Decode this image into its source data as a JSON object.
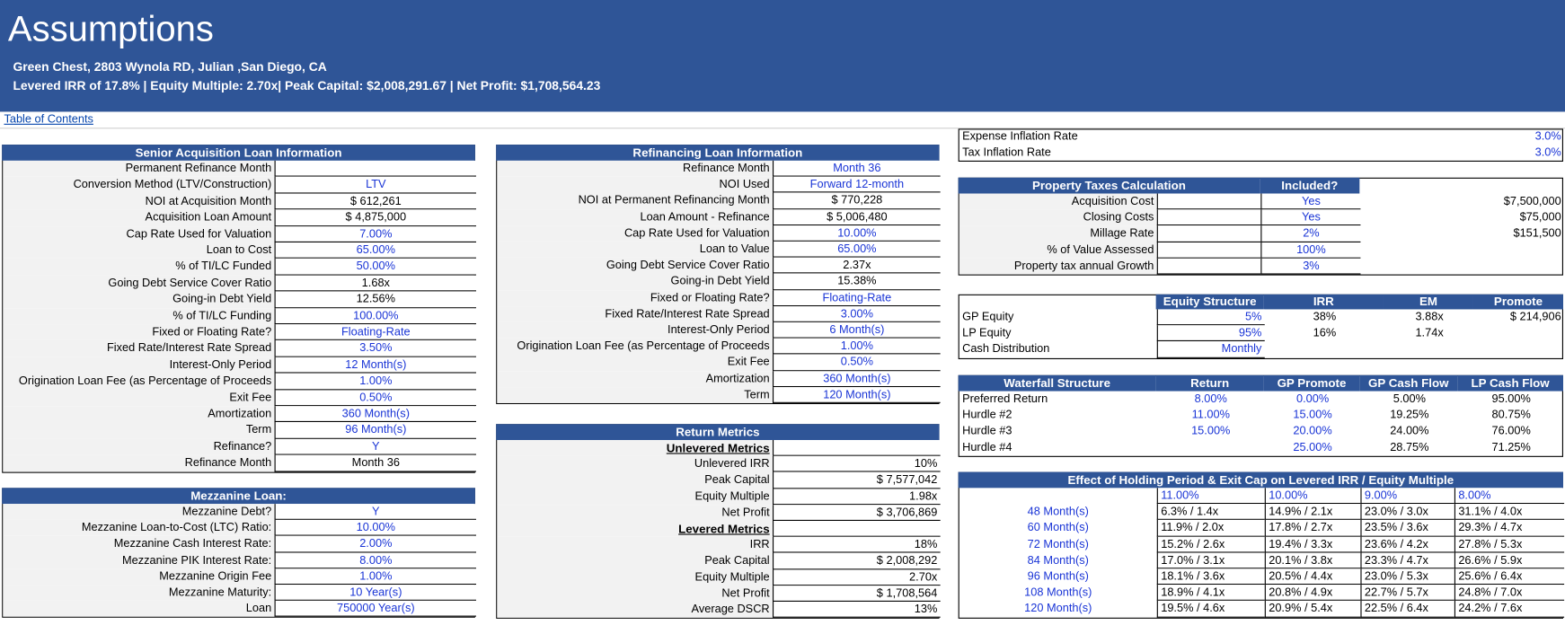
{
  "header": {
    "title": "Assumptions",
    "subtitle": "Green Chest, 2803 Wynola RD, Julian ,San Diego, CA",
    "summary": "Levered IRR of 17.8% | Equity Multiple: 2.70x| Peak Capital: $2,008,291.67 | Net Profit: $1,708,564.23"
  },
  "toc_link": "Table of Contents",
  "senior_loan": {
    "title": "Senior Acquisition Loan Information",
    "rows": [
      {
        "label": "Permanent Refinance Month",
        "value": null
      },
      {
        "label": "Conversion Method (LTV/Construction)",
        "value": "LTV",
        "input": true
      },
      {
        "label": "NOI at Acquisition Month",
        "value": "$ 612,261"
      },
      {
        "label": "Acquisition Loan Amount",
        "value": "$ 4,875,000"
      },
      {
        "label": "Cap Rate Used for Valuation",
        "value": "7.00%",
        "input": true
      },
      {
        "label": "Loan to Cost",
        "value": "65.00%",
        "input": true
      },
      {
        "label": "% of TI/LC Funded",
        "value": "50.00%",
        "input": true
      },
      {
        "label": "Going Debt Service Cover Ratio",
        "value": "1.68x"
      },
      {
        "label": "Going-in Debt Yield",
        "value": "12.56%"
      },
      {
        "label": "% of TI/LC Funding",
        "value": "100.00%",
        "input": true
      },
      {
        "label": "Fixed or Floating Rate?",
        "value": "Floating-Rate",
        "input": true
      },
      {
        "label": "Fixed Rate/Interest Rate Spread",
        "value": "3.50%",
        "input": true
      },
      {
        "label": "Interest-Only Period",
        "value": "12 Month(s)",
        "input": true
      },
      {
        "label": "Origination Loan Fee (as Percentage of Proceeds",
        "value": "1.00%",
        "input": true
      },
      {
        "label": "Exit Fee",
        "value": "0.50%",
        "input": true
      },
      {
        "label": "Amortization",
        "value": "360 Month(s)",
        "input": true
      },
      {
        "label": "Term",
        "value": "96 Month(s)",
        "input": true
      },
      {
        "label": "Refinance?",
        "value": "Y",
        "input": true
      },
      {
        "label": "Refinance Month",
        "value": "Month 36"
      }
    ]
  },
  "mezzanine": {
    "title": "Mezzanine Loan:",
    "rows": [
      {
        "label": "Mezzanine Debt?",
        "value": "Y",
        "input": true
      },
      {
        "label": "Mezzanine Loan-to-Cost (LTC) Ratio:",
        "value": "10.00%",
        "input": true
      },
      {
        "label": "Mezzanine Cash Interest Rate:",
        "value": "2.00%",
        "input": true
      },
      {
        "label": "Mezzanine PIK Interest Rate:",
        "value": "8.00%",
        "input": true
      },
      {
        "label": "Mezzanine Origin Fee",
        "value": "1.00%",
        "input": true
      },
      {
        "label": "Mezzanine Maturity:",
        "value": "10 Year(s)",
        "input": true
      },
      {
        "label": "Loan",
        "value": "750000 Year(s)",
        "input": true
      }
    ]
  },
  "refinancing": {
    "title": "Refinancing Loan Information",
    "rows": [
      {
        "label": "Refinance Month",
        "value": "Month 36",
        "input": true
      },
      {
        "label": "NOI Used",
        "value": "Forward 12-month",
        "input": true
      },
      {
        "label": "NOI at Permanent Refinancing Month",
        "value": "$ 770,228"
      },
      {
        "label": "Loan Amount - Refinance",
        "value": "$ 5,006,480"
      },
      {
        "label": "Cap Rate Used for Valuation",
        "value": "10.00%",
        "input": true
      },
      {
        "label": "Loan to Value",
        "value": "65.00%",
        "input": true
      },
      {
        "label": "Going Debt Service Cover Ratio",
        "value": "2.37x"
      },
      {
        "label": "Going-in Debt Yield",
        "value": "15.38%"
      },
      {
        "label": "Fixed or Floating Rate?",
        "value": "Floating-Rate",
        "input": true
      },
      {
        "label": "Fixed Rate/Interest Rate Spread",
        "value": "3.00%",
        "input": true
      },
      {
        "label": "Interest-Only Period",
        "value": "6 Month(s)",
        "input": true
      },
      {
        "label": "Origination Loan Fee (as Percentage of Proceeds",
        "value": "1.00%",
        "input": true
      },
      {
        "label": "Exit Fee",
        "value": "0.50%",
        "input": true
      },
      {
        "label": "Amortization",
        "value": "360 Month(s)",
        "input": true
      },
      {
        "label": "Term",
        "value": "120 Month(s)",
        "input": true
      }
    ]
  },
  "return_metrics": {
    "title": "Return Metrics",
    "rows": [
      {
        "heading": "Unlevered Metrics"
      },
      {
        "label": "Unlevered IRR",
        "value": "10%"
      },
      {
        "label": "Peak Capital",
        "value": "$ 7,577,042"
      },
      {
        "label": "Equity Multiple",
        "value": "1.98x"
      },
      {
        "label": "Net Profit",
        "value": "$ 3,706,869"
      },
      {
        "heading": "Levered Metrics"
      },
      {
        "label": "IRR",
        "value": "18%"
      },
      {
        "label": "Peak Capital",
        "value": "$ 2,008,292"
      },
      {
        "label": "Equity Multiple",
        "value": "2.70x"
      },
      {
        "label": "Net Profit",
        "value": "$ 1,708,564"
      },
      {
        "label": "Average DSCR",
        "value": "13%"
      }
    ]
  },
  "inflation": {
    "rows": [
      {
        "label": "Expense Inflation Rate",
        "value": "3.0%",
        "input": true
      },
      {
        "label": "Tax Inflation Rate",
        "value": "3.0%",
        "input": true
      }
    ]
  },
  "property_taxes": {
    "columns": [
      "Property Taxes Calculation",
      "Included?"
    ],
    "rows": [
      [
        "Acquisition Cost",
        null,
        "Yes",
        "$7,500,000"
      ],
      [
        "Closing Costs",
        null,
        "Yes",
        "$75,000"
      ],
      [
        "Millage Rate",
        null,
        "2%",
        "$151,500"
      ],
      [
        "% of Value Assessed",
        null,
        "100%",
        null
      ],
      [
        "Property tax annual Growth",
        null,
        "3%",
        null
      ]
    ]
  },
  "equity_structure": {
    "columns": [
      "Equity Structure",
      "IRR",
      "EM",
      "Promote"
    ],
    "rows": [
      [
        "GP Equity",
        "5%",
        "38%",
        "3.88x",
        "$ 214,906"
      ],
      [
        "LP Equity",
        "95%",
        "16%",
        "1.74x",
        null
      ],
      [
        "Cash Distribution",
        "Monthly",
        null,
        null,
        null
      ]
    ]
  },
  "waterfall": {
    "columns": [
      "Waterfall Structure",
      "Return",
      "GP Promote",
      "GP Cash Flow",
      "LP Cash Flow"
    ],
    "rows": [
      [
        "Preferred Return",
        "8.00%",
        "0.00%",
        "5.00%",
        "95.00%"
      ],
      [
        "Hurdle #2",
        "11.00%",
        "15.00%",
        "19.25%",
        "80.75%"
      ],
      [
        "Hurdle #3",
        "15.00%",
        "20.00%",
        "24.00%",
        "76.00%"
      ],
      [
        "Hurdle #4",
        null,
        "25.00%",
        "28.75%",
        "71.25%"
      ]
    ]
  },
  "holding_period": {
    "title": "Effect of Holding Period & Exit Cap on Levered IRR / Equity Multiple",
    "rows": [
      [
        null,
        "11.00%",
        "10.00%",
        "9.00%",
        "8.00%"
      ],
      [
        "48 Month(s)",
        "6.3% / 1.4x",
        "14.9% / 2.1x",
        "23.0% / 3.0x",
        "31.1% / 4.0x"
      ],
      [
        "60 Month(s)",
        "11.9% / 2.0x",
        "17.8% / 2.7x",
        "23.5% / 3.6x",
        "29.3% / 4.7x"
      ],
      [
        "72 Month(s)",
        "15.2% / 2.6x",
        "19.4% / 3.3x",
        "23.6% / 4.2x",
        "27.8% / 5.3x"
      ],
      [
        "84 Month(s)",
        "17.0% / 3.1x",
        "20.1% / 3.8x",
        "23.3% / 4.7x",
        "26.6% / 5.9x"
      ],
      [
        "96 Month(s)",
        "18.1% / 3.6x",
        "20.5% / 4.4x",
        "23.0% / 5.3x",
        "25.6% / 6.4x"
      ],
      [
        "108 Month(s)",
        "18.9% / 4.1x",
        "20.8% / 4.9x",
        "22.7% / 5.7x",
        "24.8% / 7.0x"
      ],
      [
        "120 Month(s)",
        "19.5% / 4.6x",
        "20.9% / 5.4x",
        "22.5% / 6.4x",
        "24.2% / 7.6x"
      ]
    ]
  }
}
